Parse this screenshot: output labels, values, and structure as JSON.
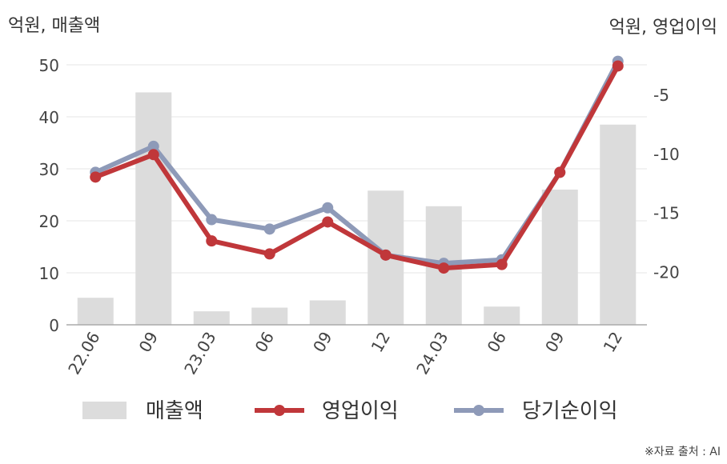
{
  "unit_left": "억원, 매출액",
  "unit_right": "억원, 영업이익",
  "source": "※자료 출처 : AI",
  "chart_data": {
    "type": "bar+line",
    "categories": [
      "22.06",
      "09",
      "23.03",
      "06",
      "09",
      "12",
      "24.03",
      "06",
      "09",
      "12"
    ],
    "left_axis": {
      "ticks": [
        "0",
        "10",
        "20",
        "30",
        "40",
        "50"
      ],
      "min": 0,
      "max": 50
    },
    "right_axis": {
      "ticks": [
        "-5",
        "-10",
        "-15",
        "-20"
      ],
      "min": -24.5,
      "max": -2.5
    },
    "series": [
      {
        "name": "매출액",
        "type": "bar",
        "axis": "left",
        "color": "#dcdcdc",
        "values": [
          5.2,
          44.7,
          2.6,
          3.3,
          4.7,
          25.8,
          22.8,
          3.5,
          26.0,
          38.5
        ]
      },
      {
        "name": "영업이익",
        "type": "line",
        "axis": "right",
        "color": "#c0373a",
        "values": [
          -12.0,
          -10.1,
          -17.4,
          -18.5,
          -15.8,
          -18.6,
          -19.7,
          -19.4,
          -11.6,
          -2.6
        ]
      },
      {
        "name": "당기순이익",
        "type": "line",
        "axis": "right",
        "color": "#8e9ab8",
        "values": [
          -11.6,
          -9.4,
          -15.6,
          -16.4,
          -14.6,
          -18.6,
          -19.3,
          -19.0,
          -11.6,
          -2.2
        ]
      }
    ],
    "grid": true,
    "legend": "bottom"
  }
}
